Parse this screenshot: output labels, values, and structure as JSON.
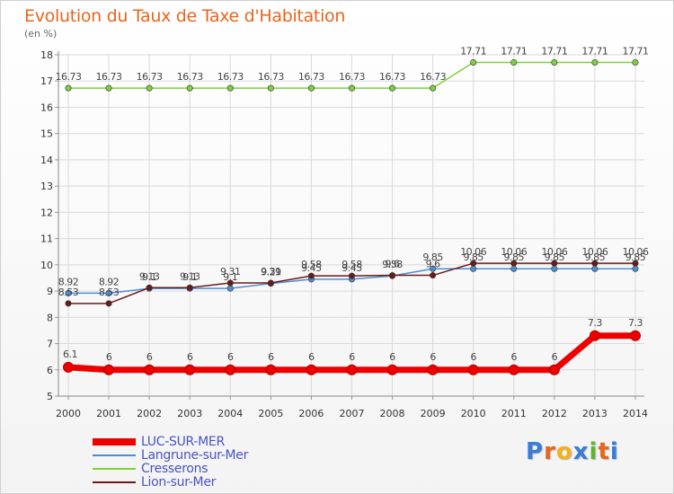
{
  "title": "Evolution du Taux de Taxe d'Habitation",
  "unit_label": "(en %)",
  "logo_text": "Proxiti",
  "colors": {
    "title": "#e8651c",
    "grid": "#d9d9d9",
    "axis_text": "#333333",
    "legend_text": "#4a54c0"
  },
  "chart_data": {
    "type": "line",
    "title": "Evolution du Taux de Taxe d'Habitation",
    "ylabel": "(en %)",
    "xlabel": "",
    "ylim": [
      5,
      18
    ],
    "yticks": [
      5,
      6,
      7,
      8,
      9,
      10,
      11,
      12,
      13,
      14,
      15,
      16,
      17,
      18
    ],
    "grid": true,
    "legend_position": "bottom-left",
    "x": [
      "2000",
      "2001",
      "2002",
      "2003",
      "2004",
      "2005",
      "2006",
      "2007",
      "2008",
      "2009",
      "2010",
      "2011",
      "2012",
      "2013",
      "2014"
    ],
    "series": [
      {
        "name": "LUC-SUR-MER",
        "color": "#ee0000",
        "stroke": "thick",
        "values": [
          6.1,
          6,
          6,
          6,
          6,
          6,
          6,
          6,
          6,
          6,
          6,
          6,
          6,
          7.3,
          7.3
        ],
        "labels": [
          "6.1",
          "6",
          "6",
          "6",
          "6",
          "6",
          "6",
          "6",
          "6",
          "6",
          "6",
          "6",
          "6",
          "7.3",
          "7.3"
        ]
      },
      {
        "name": "Langrune-sur-Mer",
        "color": "#4d8ed0",
        "stroke": "thin",
        "values": [
          8.92,
          8.92,
          9.1,
          9.1,
          9.1,
          9.29,
          9.45,
          9.45,
          9.58,
          9.85,
          9.85,
          9.85,
          9.85,
          9.85,
          9.85
        ],
        "labels": [
          "8.92",
          "8.92",
          "9.1",
          "9.1",
          "9.1",
          "9.29",
          "9.45",
          "9.45",
          "9.58",
          "9.85",
          "9.85",
          "9.85",
          "9.85",
          "9.85",
          "9.85"
        ]
      },
      {
        "name": "Cresserons",
        "color": "#7fd13b",
        "stroke": "thin",
        "values": [
          16.73,
          16.73,
          16.73,
          16.73,
          16.73,
          16.73,
          16.73,
          16.73,
          16.73,
          16.73,
          17.71,
          17.71,
          17.71,
          17.71,
          17.71
        ],
        "labels": [
          "16.73",
          "16.73",
          "16.73",
          "16.73",
          "16.73",
          "16.73",
          "16.73",
          "16.73",
          "16.73",
          "16.73",
          "17.71",
          "17.71",
          "17.71",
          "17.71",
          "17.71"
        ]
      },
      {
        "name": "Lion-sur-Mer",
        "color": "#6b1a1a",
        "stroke": "thin",
        "values": [
          8.53,
          8.53,
          9.13,
          9.13,
          9.31,
          9.31,
          9.58,
          9.58,
          9.6,
          9.6,
          10.06,
          10.06,
          10.06,
          10.06,
          10.06
        ],
        "labels": [
          "8.53",
          "8.53",
          "9.13",
          "9.13",
          "9.31",
          "9.31",
          "9.58",
          "9.58",
          "9.6",
          "9.6",
          "10.06",
          "10.06",
          "10.06",
          "10.06",
          "10.06"
        ]
      }
    ]
  }
}
